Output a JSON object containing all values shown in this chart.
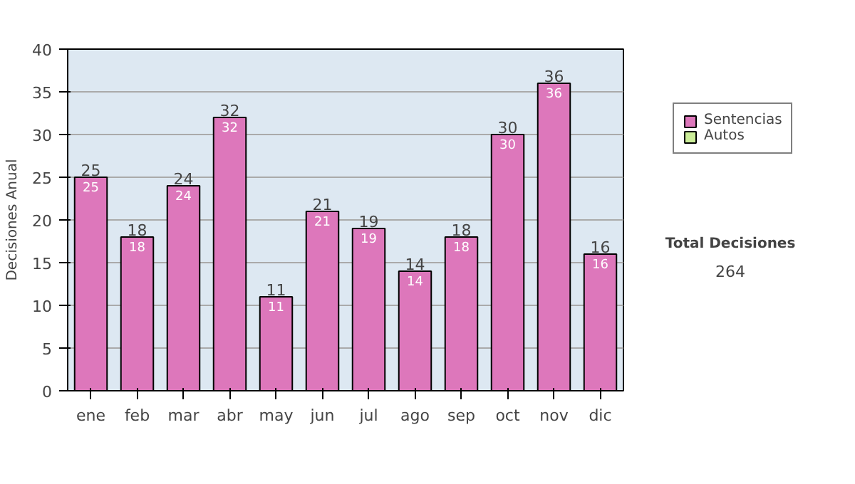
{
  "chart_data": {
    "type": "bar",
    "ylabel": "Decisiones Anual",
    "categories": [
      "ene",
      "feb",
      "mar",
      "abr",
      "may",
      "jun",
      "jul",
      "ago",
      "sep",
      "oct",
      "nov",
      "dic"
    ],
    "series": [
      {
        "name": "Sentencias",
        "color": "#dd77bb",
        "values": [
          25,
          18,
          24,
          32,
          11,
          21,
          19,
          14,
          18,
          30,
          36,
          16
        ]
      },
      {
        "name": "Autos",
        "color": "#ccee99",
        "values": [
          null,
          null,
          null,
          null,
          null,
          null,
          null,
          null,
          null,
          null,
          null,
          null
        ]
      }
    ],
    "stacked": true,
    "data_labels": true,
    "totals": [
      "25",
      "18",
      "24",
      "32",
      "11",
      "21",
      "19",
      "14",
      "18",
      "30",
      "36",
      "16"
    ],
    "ylim": [
      0,
      40
    ],
    "yticks": [
      0,
      5,
      10,
      15,
      20,
      25,
      30,
      35,
      40
    ],
    "grid": "y",
    "legend": "right",
    "annotations": [
      "Total Decisiones",
      "264"
    ]
  }
}
